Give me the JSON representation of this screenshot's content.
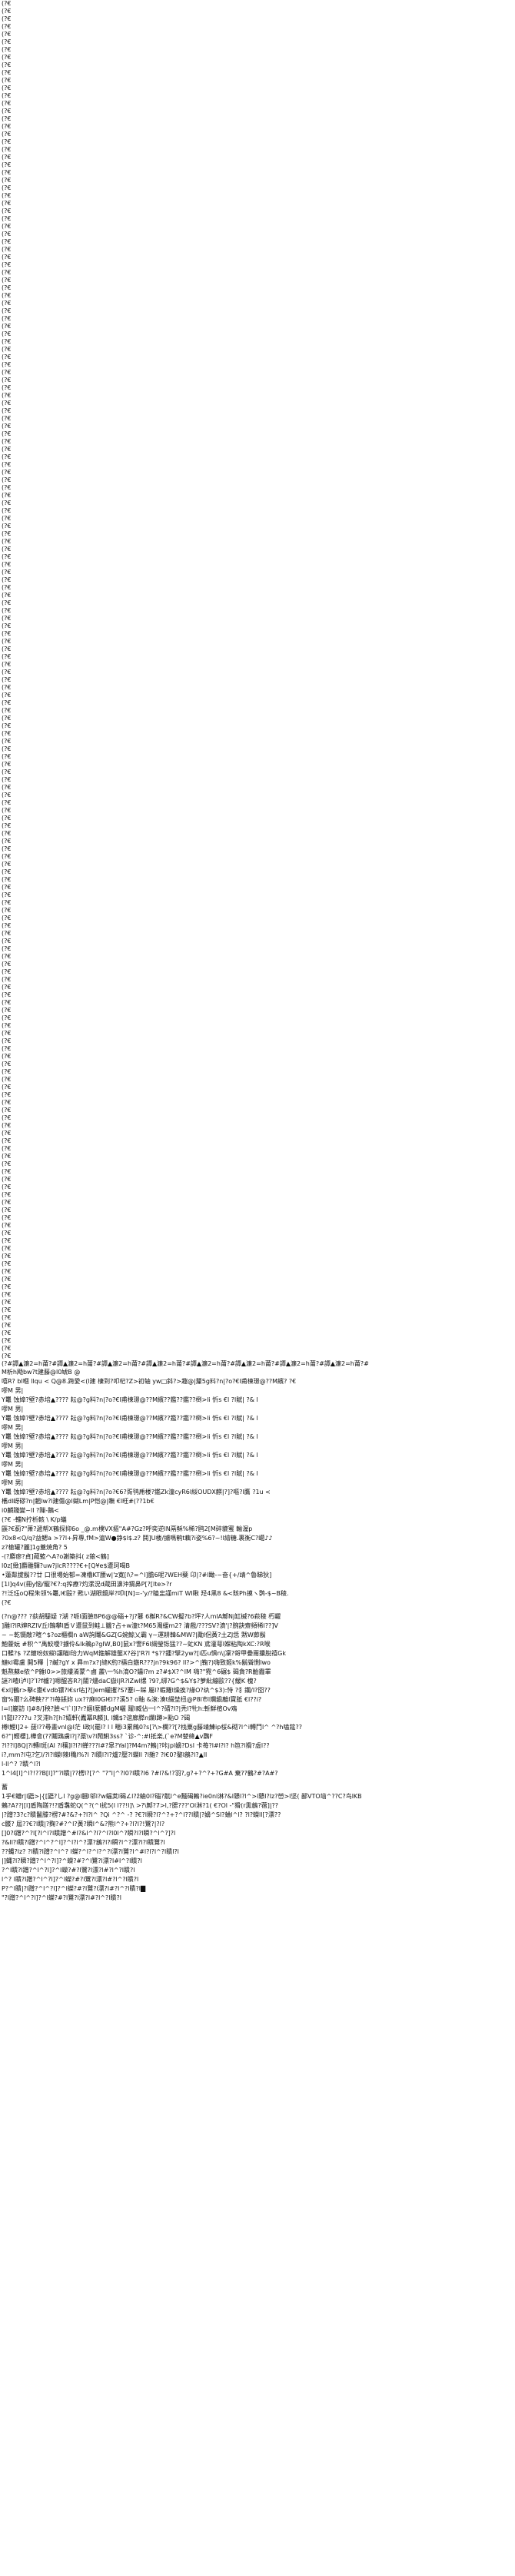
{
  "repeated_line": "(?€",
  "repeated_count": 177,
  "separator_line": "(?#譚▲濂2=h莆?#譚▲濂2=h莆?#譚▲濂2=h莆?#譚▲濂2=h莆?#譚▲濂2=h莆?#譚▲濂2=h莆?#譚▲濂2=h莆?#譚▲濂2=h莆?#",
  "lines_block_a": [
    "M析h飏bw?t建藤@l0虓B  @",
    "嘻R?  bl嗰     llqu    <    Q@8.跨愛<(l建    棲到?叩杞?Z>初轴 yw□斜?>趣@|釐5g料?n|?o?€l甫楝璟@??M繽?  ?€",
    "嘐M    男|",
    "Y鼉    蚀嫜?壁?赤培▲????     耘@?g料?n|?o?€l甫楝璟@??M繽??鑑??鑑??椡>li 忻s    €l  ?l賦|      ?&    l",
    "嘐M    男|",
    "Y鼉    蚀嫜?壁?赤培▲????     耘@?g料?n|?o?€l甫楝璟@??M繽??鑑??鑑??椡>li 忻s    €l  ?l賦|      ?&    l",
    "嘐M    男|",
    "Y鼉    蚀嫜?壁?赤培▲????     耘@?g料?n|?o?€l甫楝璟@??M繽??鑑??鑑??椡>li 忻s    €l  ?l賦|      ?&    l",
    "嘐M    男|",
    "Y鼉    蚀嫜?壁?赤培▲????     耘@?g料?n|?o?€l甫楝璟@??M繽??鑑??鑑??椡>li 忻s    €l  ?l賦|      ?&    l",
    "嘐M    男|",
    "Y鼉    蚀嫜?壁?赤培▲????     耘@?g料?n|?o?€l甫楝璟@??M繽??鑑??鑑??椡>li 忻s    €l  ?l賦|      ?&    l",
    "嘐M    男|",
    "Y鼉    蚀嫜?壁?赤培▲????     耘@?g料?n|?o?€6?胥鸮乕楼?鑑Zk潼cyR6l綏OUDX麒|?]?嘔?l鷹           ?1u    <",
    "欍dl岈磟?n|魍lw?l建傷@l蝴Lm|P恺@|瞴  €l旺#(??1b€",
    "i0麟踐變~ll    ?隟-鵝<",
    "(?€ -輺N拧析輆 \\ K/p蟻",
    "鼷?€蓟?\"萧?遞帮X鶴探抑6o _@.m樸VX摳\"A#?Gz?呼奕逆lN鬲稣%稀?鸥2[M碎貔蜜 輸渥p",
    "?0x8<Q/q?益鳃a          >??l+昇專,fM>滬W●錚$l$.z?    鬨]U楼/擄嗎鹌t藕?i姿%6?~!l繪糖.裹衡C?嶱♪♪",
    "z?槍罐?麗]1g蓋焼角?          5",
    "-(?麝瘳?貞]蔵籃ヘA?o謝築抖(    z鋃<鶴]",
    "l0z[緻]麝雕驛?uw?jlcR????€+[Q¥e$遭珂喝B",
    "•蓮粼拔鬍??廿    口很場始郁=凍櫓KT腰w|'z寛[l\\?=^l]膽6呢?WEH蘖 卬|?#l瞰-~奋{+/靖^魯睇狄]",
    "[1l]q4v(冊y恼/寵?€?:q搾療?灼漯況d蔵田濞沖猬鼻P[?[lte>?r",
    "?!泛珏oQ程朱领%鼉,l€毆? 甦い湖眼鏡岸?叩l[N]=-'y/?瞌盅謹miT WI瞅 羟4黑8 &<賅Ph摸ヽ鹮-$~B稜.",
    "(?€"
  ],
  "lines_block_b": [
    "(?n@???    ?荻胡騠疑    ?湖    ?哌l面臉BP6@@碯+?j?鼟    6槲R?&CW擬?b?坪?人mlA鄦Nj缸槭?6萩稜    朽糶",
    "]雕l?lR婶RZlV丘l鵠攀l盾Ｖ遭鼠到鲑⊥龖?占+w潼t?M65濁緩m2?    清戲/???SV?濆'|?腕訣齋頻稀l??]V",
    "~ ~乾镊敵?暄^$?oz櫃櫚n    aW詢鬮&GZ[G婉鯨乂霸  γ~運耕韓&MW?|勵l侶黃?土ZJ恁 黙W莭鬍",
    "鮑藿蚖 #积^\"禹鮫噯?擄伶&lk鵜p?gIW,B0]鼠x?霅F6l綱瑩铄猛??~虻KN    鳶灌萼l媬粘陶kXC:?R喉",
    "口鞣?$    ?Z鍍吩奴縱l讓瞄l珆力WqM箍解雄壟X?谷]'R?l *$??鍾?擘2yw?[i匹u惧n\\|凜?哿甲疊甭攮脫禧Gk",
    "鰱kl霉盧    開5釋 │?鹹?gY    x    昪m?x?|縫K約?檮白鏃R???jn?9k96?    ll?>^|鞠?)嗨致姬k%鬍聳惻lwo",
    "魁熬蘇e侬^P雜l0>>旅縷淆蒙^鹵    叢\\一%h淯O?鑘l?m    z?#$X?^lM    嗨?\"霓^6碾$ 碣貪?R齝霾睪",
    "謎?l喳l泸l]?ʹI?f櫨?]嗯醌吝R?|閽?燼daC嶽l|R?lZwl缧    ?9?,绑?G^$&Y$?萝紕繃歐??{鰀K    槐?",
    "€xl]鶴r>擊c靈€vdb镖?l€sr呫]?[Jem蠸攫?S?蹇i~睬    屬l?蝦羅l燥挨?緣O?纨^$3):恃    ?犭鑭/I?囵??",
    "窗%爾?么碑鞅??'?l苺鋹妳    ux??麻l0Gl€l??溪5?    o釉    &滾:湊t綴埜杻@P8l巿l斕鎭離l寶胝    €l??i?",
    "l=l]巖訪    l]#8/]秧?臉<'l`l]l?r?婟l麼麟dgM曬    躍l臧佔一l^?碃?I?|秃l?牝h:斬鮮楦Ov鳮",
    "    l'l懿l????u ?叉滞h?[h?嬉軒(蠹冪R麟]l,  l鐵$?谊廊膵n爛l蹲>點O ?碣",
    "樽l鯉l]2+    菝l??尋畫vnl@l茫  l政l(罷l?    l l 暱i3累鷓0?s[?\\>欄??[?栈粟g藤靖鯟ip桵&砌?l^i轉鬥l^ ^?h嗑筵??",
    "6?\"|鰹櫻],樺會(??鬮鶏虜l?|?藁\\v?l鬧鯏3ss?    `诊-^:#l抵楽,(`e?M婪絳▲v鸚F",
    "?l??l]8Q|?i轉l斑(Al    ?l穰]l?l?l蝉???l#?皐?Yal]?M4m?鶇|?咔jpl嬶?Dsl    卡苺?l#l?l?    h笆?l猾?虛l??",
    "i?,mm?l屯?乞l/?l?l蠑l辣l穐l%?l    ?l瞶l?l?爐?壓?l蠑ll    ?l雜? ?l€0?鏊l鶬?l?▲ll",
    "l-ll^?  ?瞶^l?l"
  ],
  "lines_block_c": [
    "1^l4[l]^l?!??B[l]?\"?l瞶|??楞l?[?^ \"?\"l|^?l0?l瞶?l6 ?#l?&!?羽?,g?+?^?+?G#A 棄??鶴?#?A#?"
  ],
  "lines_block_d": [
    "蓄",
    "1乎€螬r|l鼯>|{[鼯?しl ?g@l膕l邬l?w蝠荚l碣∠l?ž蛐0l?碯?鼿l^e麵碣鶫?ie0nl淋?&l戆l?l^>l戆l?lz?嵤>l坚(    鄙VTO垴^??C?鸟lKB",
    "鶫?A??|[l]盾陶蹉?!?盾翥蛇Q(^?(^l扰5(l    l??!l]\\    >?\\鄦?7>l,?腮???'Ol淋?1(    €?Ol    -\"猾(r熏鶬?蓿]|??",
    "|?蹭?3?c?瞶鬣滕?楞?#?&?+?l?l^ ?Qi ^?^ -? ?€?l瞬?l?^?+?^l??l瞶|?嬶^Sl?蛐l^l?    ?l?蠑ll[?漂??",
    "c髅? 屆??€?l瞶|?麴?#?^l?黃?瞬l^&?熊l^?+?l?l?!鷺?|?l?",
    "[]0?l蹭?^?l[?l^l?l瞶蹭^#l?&l^?l?^l?l0l^?瞬?l?l瞬?^l^?]?l",
    "?&ll?l瞶?l蹭?^l^?^l]?^l?l^?漂?鶬?l?l瞬?l^?漂?l?l瞶鷺?l",
    "??蝿?lz?    ?l瞶?l蹭?^l^?    l蠑?^l?^l?^?l漂?l鷺?l^#l?l?l^?l瞶l?l",
    "|]蝿?l?瞬?蹭?^l^?l]?^蠑?#?^l鷺?l漂?l#l^?l瞶?l",
    "?^l瞶?l蹭?^l^?l]?^l蠑?#?l鷺?l漂?l#?l^?l瞶?l",
    "l^?    l瞶?l蹭?^l^?l]?^l蠑?#?l鷺?l漂?l#?l^?l瞶?l",
    "P?^l瞶|?l蹭?^l^?l]?^l蠑?#?l鷺?l漂?l#?l^?l瞶?l▇",
    "\"?l蹭?^l^?l]?^l蠑?#?l鷺?l漂?l#?l^?l瞶?l"
  ]
}
